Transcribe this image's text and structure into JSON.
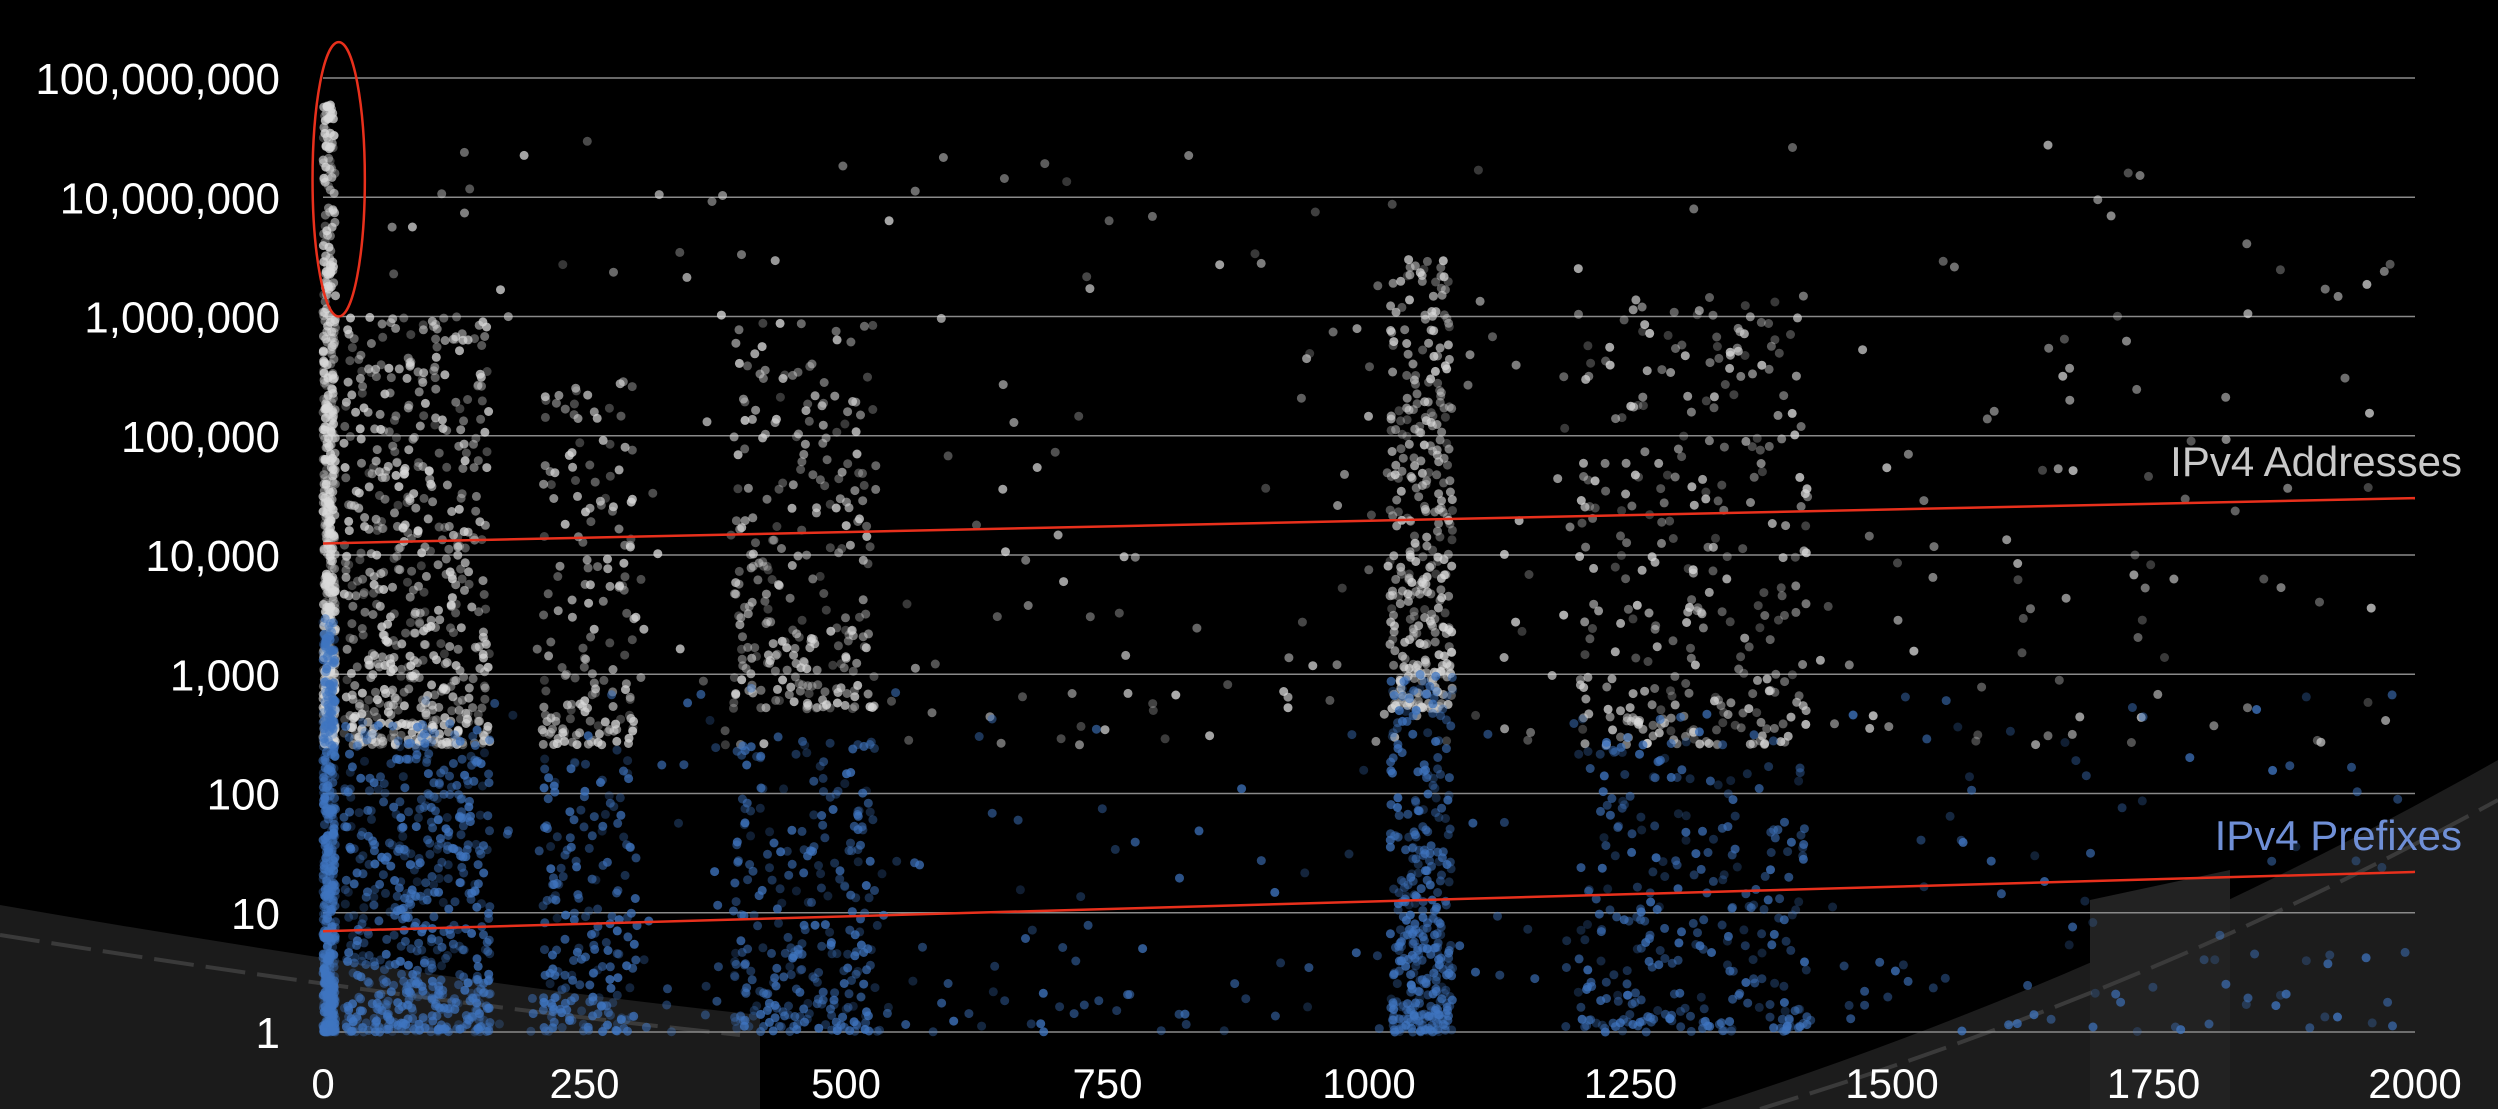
{
  "chart_data": {
    "type": "scatter",
    "x_ticks": [
      "0",
      "250",
      "500",
      "750",
      "1000",
      "1250",
      "1500",
      "1750",
      "2000"
    ],
    "y_ticks": [
      "1",
      "10",
      "100",
      "1,000",
      "10,000",
      "100,000",
      "1,000,000",
      "10,000,000",
      "100,000,000"
    ],
    "xlim": [
      0,
      2000
    ],
    "ylim": [
      1,
      100000000
    ],
    "y_scale": "log",
    "grid": "horizontal",
    "series": [
      {
        "name": "IPv4 Addresses",
        "color": "#d9d9d9",
        "trend": [
          {
            "x": 0,
            "y": 12500
          },
          {
            "x": 2000,
            "y": 30000
          }
        ],
        "clusters": [
          {
            "x_from": 0,
            "x_to": 12,
            "y_from": 256,
            "y_to": 60000000,
            "count": 520
          },
          {
            "x_from": 20,
            "x_to": 160,
            "y_from": 256,
            "y_to": 1000000,
            "count": 560
          },
          {
            "x_from": 210,
            "x_to": 300,
            "y_from": 256,
            "y_to": 300000,
            "count": 160
          },
          {
            "x_from": 390,
            "x_to": 530,
            "y_from": 512,
            "y_to": 1000000,
            "count": 260
          },
          {
            "x_from": 1020,
            "x_to": 1080,
            "y_from": 512,
            "y_to": 3000000,
            "count": 340
          },
          {
            "x_from": 1200,
            "x_to": 1420,
            "y_from": 256,
            "y_to": 1500000,
            "count": 280
          },
          {
            "x_from": 20,
            "x_to": 2000,
            "y_from": 256,
            "y_to": 30000000,
            "count": 320
          }
        ]
      },
      {
        "name": "IPv4 Prefixes",
        "color": "#3f75c0",
        "trend": [
          {
            "x": 0,
            "y": 7
          },
          {
            "x": 2000,
            "y": 22
          }
        ],
        "clusters": [
          {
            "x_from": 0,
            "x_to": 12,
            "y_from": 1,
            "y_to": 3000,
            "count": 520
          },
          {
            "x_from": 20,
            "x_to": 160,
            "y_from": 1,
            "y_to": 400,
            "count": 560
          },
          {
            "x_from": 210,
            "x_to": 300,
            "y_from": 1,
            "y_to": 200,
            "count": 180
          },
          {
            "x_from": 390,
            "x_to": 530,
            "y_from": 1,
            "y_to": 300,
            "count": 260
          },
          {
            "x_from": 1020,
            "x_to": 1080,
            "y_from": 1,
            "y_to": 1000,
            "count": 340
          },
          {
            "x_from": 1200,
            "x_to": 1420,
            "y_from": 1,
            "y_to": 300,
            "count": 260
          },
          {
            "x_from": 20,
            "x_to": 2000,
            "y_from": 1,
            "y_to": 800,
            "count": 320
          }
        ]
      }
    ],
    "annotations": [
      {
        "kind": "ellipse",
        "color": "#e8301c",
        "x_from": -10,
        "x_to": 40,
        "y_from": 1000000,
        "y_to": 200000000
      }
    ]
  }
}
